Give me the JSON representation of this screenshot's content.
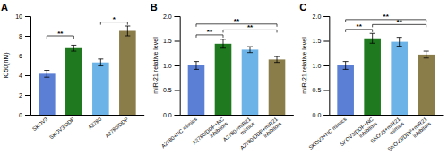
{
  "chart_data": [
    {
      "type": "bar",
      "title": "A",
      "categories": [
        "SKOV3",
        "SKOV3/DDP",
        "A2780",
        "A2780/DDP"
      ],
      "values": [
        4.15,
        6.75,
        5.3,
        8.5
      ],
      "errors": [
        0.35,
        0.3,
        0.35,
        0.5
      ],
      "colors": [
        "#5B7FD4",
        "#1F7A1F",
        "#6CB4E8",
        "#8B7D4A"
      ],
      "ylabel": "IC50(nM)",
      "ylim": [
        0,
        10
      ],
      "yticks": [
        0,
        2,
        4,
        6,
        8,
        10
      ],
      "grid": false,
      "annotations": [
        {
          "from": "SKOV3",
          "to": "SKOV3/DDP",
          "y": 8.0,
          "text": "**"
        },
        {
          "from": "A2780",
          "to": "A2780/DDP",
          "y": 9.4,
          "text": "*"
        }
      ]
    },
    {
      "type": "bar",
      "title": "B",
      "categories": [
        "A2780+NC mimics",
        "A2780/DDP+NC\ninhibitors",
        "A2780+miR21\nmimics",
        "A2780/DDP+miR21\ninhibitors"
      ],
      "values": [
        1.0,
        1.44,
        1.32,
        1.12
      ],
      "errors": [
        0.08,
        0.09,
        0.06,
        0.06
      ],
      "colors": [
        "#5B7FD4",
        "#1F7A1F",
        "#6CB4E8",
        "#8B7D4A"
      ],
      "ylabel": "miR-21 relative level",
      "ylim": [
        0,
        2.0
      ],
      "yticks": [
        {
          "value": 0,
          "label": "0.0"
        },
        0.5,
        {
          "value": 1,
          "label": "1.0"
        },
        1.5,
        {
          "value": 2,
          "label": "2.0"
        }
      ],
      "grid": false,
      "annotations": [
        {
          "from": "A2780+NC mimics",
          "to": "A2780/DDP+NC\ninhibitors",
          "y": 1.62,
          "text": "**"
        },
        {
          "from": "A2780/DDP+NC\ninhibitors",
          "to": "A2780/DDP+miR21\ninhibitors",
          "y": 1.72,
          "text": "**"
        },
        {
          "from": "A2780+NC mimics",
          "to": "A2780/DDP+miR21\ninhibitors",
          "y": 1.84,
          "text": "**"
        }
      ]
    },
    {
      "type": "bar",
      "title": "C",
      "categories": [
        "SKOV3+NC mimics",
        "SKOV3/DDP+NC\ninhibitors",
        "SKOV3+miR21\nmimics",
        "SKOV3/DDP+miR21\ninhibitors"
      ],
      "values": [
        1.0,
        1.55,
        1.48,
        1.22
      ],
      "errors": [
        0.08,
        0.1,
        0.09,
        0.07
      ],
      "colors": [
        "#5B7FD4",
        "#1F7A1F",
        "#6CB4E8",
        "#8B7D4A"
      ],
      "ylabel": "miR-21 relative level",
      "ylim": [
        0,
        2.0
      ],
      "yticks": [
        {
          "value": 0,
          "label": "0.0"
        },
        0.5,
        {
          "value": 1,
          "label": "1.0"
        },
        1.5,
        {
          "value": 2,
          "label": "2.0"
        }
      ],
      "grid": false,
      "annotations": [
        {
          "from": "SKOV3+NC mimics",
          "to": "SKOV3/DDP+NC\ninhibitors",
          "y": 1.73,
          "text": "**"
        },
        {
          "from": "SKOV3/DDP+NC\ninhibitors",
          "to": "SKOV3/DDP+miR21\ninhibitors",
          "y": 1.83,
          "text": "**"
        },
        {
          "from": "SKOV3+NC mimics",
          "to": "SKOV3/DDP+miR21\ninhibitors",
          "y": 1.93,
          "text": "**"
        }
      ]
    }
  ]
}
